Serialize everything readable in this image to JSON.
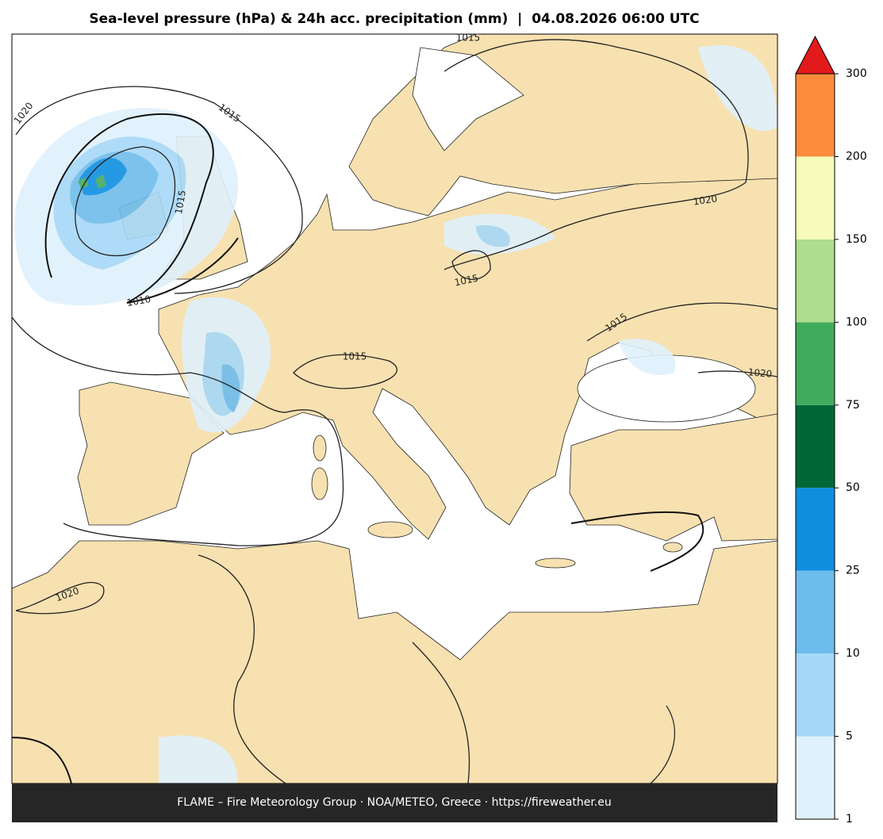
{
  "title": "Sea-level pressure (hPa) & 24h acc. precipitation (mm)  |  04.08.2026 06:00 UTC",
  "colorbar": {
    "ticks": [
      1,
      5,
      10,
      25,
      50,
      75,
      100,
      150,
      200,
      300
    ],
    "colors": [
      "#dff1fc",
      "#a6d8f7",
      "#6ebcec",
      "#0f8ee0",
      "#006837",
      "#41ab5d",
      "#addd8e",
      "#f7fbb9",
      "#fd8d3c"
    ],
    "extend_color": "#e31a1c"
  },
  "contour_labels": [
    1020,
    1015,
    1015,
    1015,
    1010,
    1020,
    1015,
    1015,
    1020,
    1015,
    1020
  ],
  "footer": "FLAME – Fire Meteorology Group · NOA/METEO, Greece · https://fireweather.eu"
}
